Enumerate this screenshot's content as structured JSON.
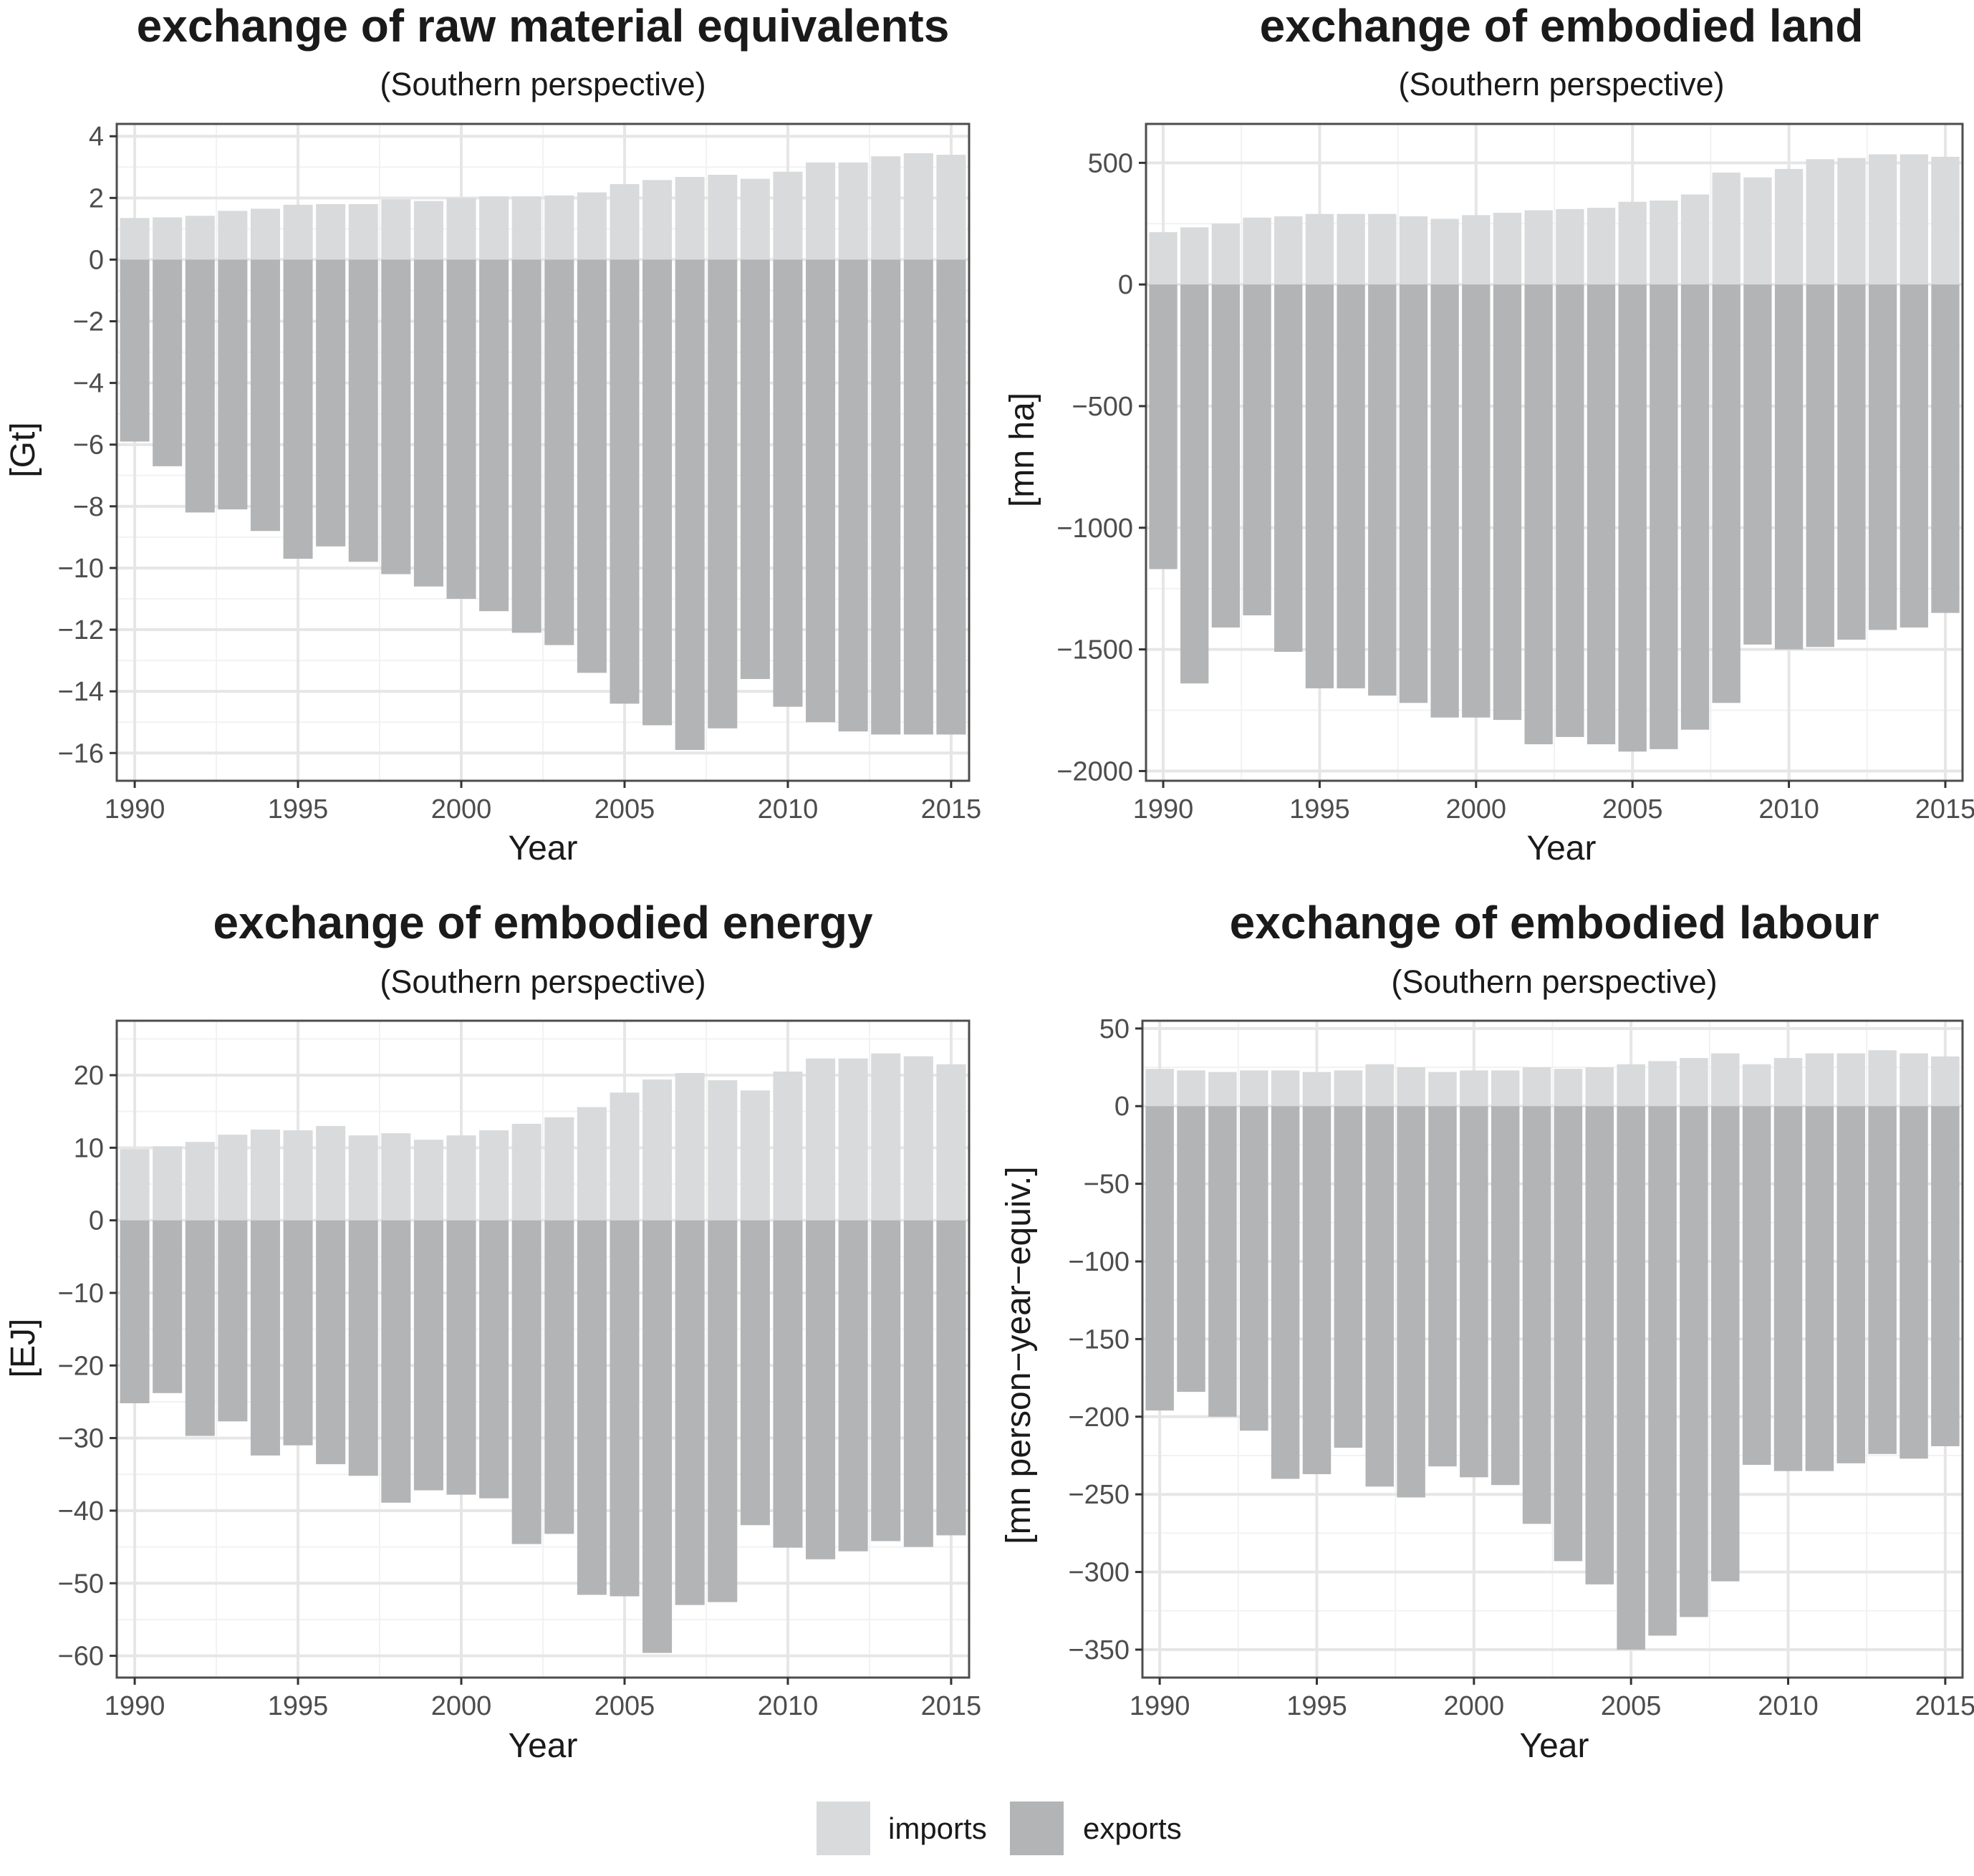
{
  "colors": {
    "imports": "#d9dadb",
    "exports": "#b3b4b5",
    "grid_major": "#e6e6e6",
    "grid_minor": "#f2f2f2",
    "panel_border": "#4d4d4d"
  },
  "legend": {
    "imports": "imports",
    "exports": "exports"
  },
  "chart_data": [
    {
      "type": "bar",
      "title": "exchange of raw material equivalents",
      "subtitle": "(Southern perspective)",
      "xlabel": "Year",
      "ylabel": "[Gt]",
      "x": [
        1990,
        1991,
        1992,
        1993,
        1994,
        1995,
        1996,
        1997,
        1998,
        1999,
        2000,
        2001,
        2002,
        2003,
        2004,
        2005,
        2006,
        2007,
        2008,
        2009,
        2010,
        2011,
        2012,
        2013,
        2014,
        2015
      ],
      "xticks": [
        "1990",
        "1995",
        "2000",
        "2005",
        "2010",
        "2015"
      ],
      "yticks": [
        4,
        2,
        0,
        -2,
        -4,
        -6,
        -8,
        -10,
        -12,
        -14,
        -16
      ],
      "ytick_labels": [
        "4",
        "2",
        "0",
        "−2",
        "−4",
        "−6",
        "−8",
        "−10",
        "−12",
        "−14",
        "−16"
      ],
      "ylim": [
        -16.9,
        4.4
      ],
      "grid": true,
      "series": [
        {
          "name": "imports",
          "values": [
            1.35,
            1.37,
            1.42,
            1.58,
            1.65,
            1.78,
            1.8,
            1.8,
            1.95,
            1.9,
            2.0,
            2.05,
            2.05,
            2.08,
            2.18,
            2.45,
            2.58,
            2.68,
            2.75,
            2.62,
            2.85,
            3.15,
            3.15,
            3.35,
            3.45,
            3.4
          ]
        },
        {
          "name": "exports",
          "values": [
            -5.9,
            -6.7,
            -8.2,
            -8.1,
            -8.8,
            -9.7,
            -9.3,
            -9.8,
            -10.2,
            -10.6,
            -11.0,
            -11.4,
            -12.1,
            -12.5,
            -13.4,
            -14.4,
            -15.1,
            -15.9,
            -15.2,
            -13.6,
            -14.5,
            -15.0,
            -15.3,
            -15.4,
            -15.4,
            -15.4
          ]
        }
      ]
    },
    {
      "type": "bar",
      "title": "exchange of embodied land",
      "subtitle": "(Southern perspective)",
      "xlabel": "Year",
      "ylabel": "[mn ha]",
      "x": [
        1990,
        1991,
        1992,
        1993,
        1994,
        1995,
        1996,
        1997,
        1998,
        1999,
        2000,
        2001,
        2002,
        2003,
        2004,
        2005,
        2006,
        2007,
        2008,
        2009,
        2010,
        2011,
        2012,
        2013,
        2014,
        2015
      ],
      "xticks": [
        "1990",
        "1995",
        "2000",
        "2005",
        "2010",
        "2015"
      ],
      "yticks": [
        500,
        0,
        -500,
        -1000,
        -1500,
        -2000
      ],
      "ytick_labels": [
        "500",
        "0",
        "−500",
        "−1000",
        "−1500",
        "−2000"
      ],
      "ylim": [
        -2040,
        660
      ],
      "grid": true,
      "series": [
        {
          "name": "imports",
          "values": [
            215,
            235,
            250,
            275,
            280,
            290,
            290,
            290,
            280,
            270,
            285,
            295,
            305,
            310,
            315,
            340,
            345,
            370,
            460,
            440,
            475,
            515,
            520,
            535,
            535,
            525
          ]
        },
        {
          "name": "exports",
          "values": [
            -1170,
            -1640,
            -1410,
            -1360,
            -1510,
            -1660,
            -1660,
            -1690,
            -1720,
            -1780,
            -1780,
            -1790,
            -1890,
            -1860,
            -1890,
            -1920,
            -1910,
            -1830,
            -1720,
            -1480,
            -1500,
            -1490,
            -1460,
            -1420,
            -1410,
            -1350
          ]
        }
      ]
    },
    {
      "type": "bar",
      "title": "exchange of embodied energy",
      "subtitle": "(Southern perspective)",
      "xlabel": "Year",
      "ylabel": "[EJ]",
      "x": [
        1990,
        1991,
        1992,
        1993,
        1994,
        1995,
        1996,
        1997,
        1998,
        1999,
        2000,
        2001,
        2002,
        2003,
        2004,
        2005,
        2006,
        2007,
        2008,
        2009,
        2010,
        2011,
        2012,
        2013,
        2014,
        2015
      ],
      "xticks": [
        "1990",
        "1995",
        "2000",
        "2005",
        "2010",
        "2015"
      ],
      "yticks": [
        20,
        10,
        0,
        -10,
        -20,
        -30,
        -40,
        -50,
        -60
      ],
      "ytick_labels": [
        "20",
        "10",
        "0",
        "−10",
        "−20",
        "−30",
        "−40",
        "−50",
        "−60"
      ],
      "ylim": [
        -63,
        27.5
      ],
      "grid": true,
      "series": [
        {
          "name": "imports",
          "values": [
            9.8,
            10.2,
            10.8,
            11.8,
            12.5,
            12.4,
            13.0,
            11.7,
            12.0,
            11.1,
            11.7,
            12.4,
            13.3,
            14.2,
            15.6,
            17.6,
            19.4,
            20.3,
            19.3,
            17.9,
            20.5,
            22.3,
            22.3,
            23.0,
            22.6,
            21.5
          ]
        },
        {
          "name": "exports",
          "values": [
            -25.2,
            -23.8,
            -29.7,
            -27.7,
            -32.4,
            -31.0,
            -33.6,
            -35.2,
            -38.9,
            -37.2,
            -37.8,
            -38.3,
            -44.6,
            -43.2,
            -51.6,
            -51.8,
            -59.6,
            -53.0,
            -52.6,
            -42.0,
            -45.1,
            -46.7,
            -45.6,
            -44.2,
            -45.0,
            -43.4
          ]
        }
      ]
    },
    {
      "type": "bar",
      "title": "exchange of embodied labour",
      "subtitle": "(Southern perspective)",
      "xlabel": "Year",
      "ylabel": "[mn person−year−equiv.]",
      "x": [
        1990,
        1991,
        1992,
        1993,
        1994,
        1995,
        1996,
        1997,
        1998,
        1999,
        2000,
        2001,
        2002,
        2003,
        2004,
        2005,
        2006,
        2007,
        2008,
        2009,
        2010,
        2011,
        2012,
        2013,
        2014,
        2015
      ],
      "xticks": [
        "1990",
        "1995",
        "2000",
        "2005",
        "2010",
        "2015"
      ],
      "yticks": [
        50,
        0,
        -50,
        -100,
        -150,
        -200,
        -250,
        -300,
        -350
      ],
      "ytick_labels": [
        "50",
        "0",
        "−50",
        "−100",
        "−150",
        "−200",
        "−250",
        "−300",
        "−350"
      ],
      "ylim": [
        -368,
        55
      ],
      "grid": true,
      "series": [
        {
          "name": "imports",
          "values": [
            24,
            23,
            22,
            23,
            23,
            22,
            23,
            27,
            25,
            22,
            23,
            23,
            25,
            24,
            25,
            27,
            29,
            31,
            34,
            27,
            31,
            34,
            34,
            36,
            34,
            32
          ]
        },
        {
          "name": "exports",
          "values": [
            -196,
            -184,
            -200,
            -209,
            -240,
            -237,
            -220,
            -245,
            -252,
            -232,
            -239,
            -244,
            -269,
            -293,
            -308,
            -350,
            -341,
            -329,
            -306,
            -231,
            -235,
            -235,
            -230,
            -224,
            -227,
            -219
          ]
        }
      ]
    }
  ]
}
